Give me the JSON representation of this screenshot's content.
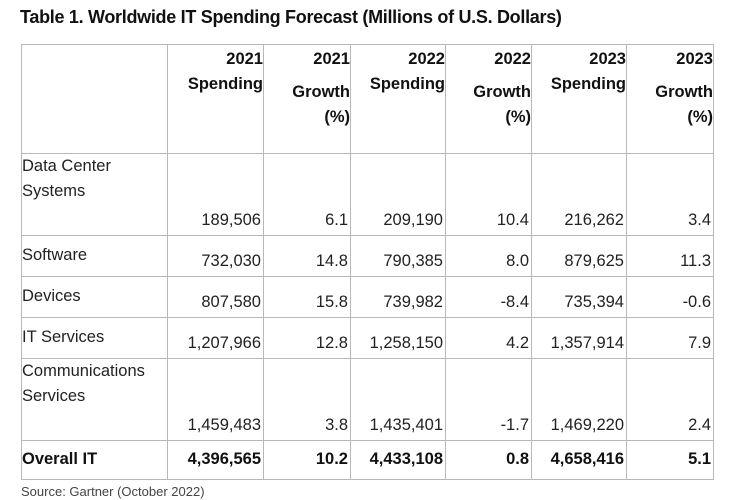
{
  "title": "Table 1. Worldwide IT Spending Forecast (Millions of U.S. Dollars)",
  "columns": [
    {
      "year": "2021",
      "label": "Spending"
    },
    {
      "year": "2021",
      "label": "Growth (%)"
    },
    {
      "year": "2022",
      "label": "Spending"
    },
    {
      "year": "2022",
      "label": "Growth (%)"
    },
    {
      "year": "2023",
      "label": "Spending"
    },
    {
      "year": "2023",
      "label": "Growth (%)"
    }
  ],
  "rows": [
    {
      "segment": "Data Center Systems",
      "values": [
        "189,506",
        "6.1",
        "209,190",
        "10.4",
        "216,262",
        "3.4"
      ]
    },
    {
      "segment": "Software",
      "values": [
        "732,030",
        "14.8",
        "790,385",
        "8.0",
        "879,625",
        "11.3"
      ]
    },
    {
      "segment": "Devices",
      "values": [
        "807,580",
        "15.8",
        "739,982",
        "-8.4",
        "735,394",
        "-0.6"
      ]
    },
    {
      "segment": "IT Services",
      "values": [
        "1,207,966",
        "12.8",
        "1,258,150",
        "4.2",
        "1,357,914",
        "7.9"
      ]
    },
    {
      "segment": "Communications Services",
      "values": [
        "1,459,483",
        "3.8",
        "1,435,401",
        "-1.7",
        "1,469,220",
        "2.4"
      ]
    }
  ],
  "overall": {
    "segment": "Overall IT",
    "values": [
      "4,396,565",
      "10.2",
      "4,433,108",
      "0.8",
      "4,658,416",
      "5.1"
    ]
  },
  "source": "Source: Gartner (October 2022)"
}
